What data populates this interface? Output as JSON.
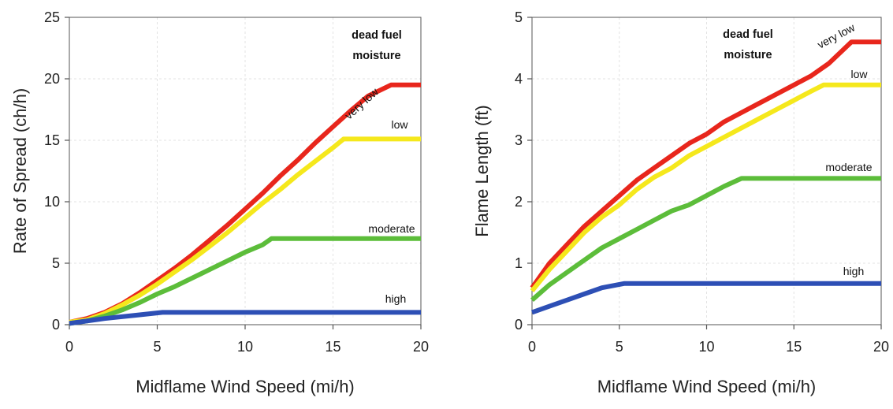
{
  "chart_data": [
    {
      "type": "line",
      "xlabel": "Midflame Wind Speed (mi/h)",
      "ylabel": "Rate of Spread (ch/h)",
      "xlim": [
        0,
        20
      ],
      "ylim": [
        0,
        25
      ],
      "xticks": [
        "0",
        "5",
        "10",
        "15",
        "20"
      ],
      "yticks": [
        "0",
        "5",
        "10",
        "15",
        "20",
        "25"
      ],
      "grid": true,
      "legend_title": [
        "dead fuel",
        "moisture"
      ],
      "series": [
        {
          "name": "very low",
          "color": "#e8261c",
          "points": [
            [
              0,
              0.2
            ],
            [
              1,
              0.5
            ],
            [
              2,
              1.0
            ],
            [
              3,
              1.7
            ],
            [
              4,
              2.6
            ],
            [
              5,
              3.6
            ],
            [
              6,
              4.6
            ],
            [
              7,
              5.7
            ],
            [
              8,
              6.9
            ],
            [
              9,
              8.1
            ],
            [
              10,
              9.4
            ],
            [
              11,
              10.7
            ],
            [
              12,
              12.1
            ],
            [
              13,
              13.4
            ],
            [
              14,
              14.8
            ],
            [
              15,
              16.1
            ],
            [
              16,
              17.4
            ],
            [
              17,
              18.6
            ],
            [
              18.3,
              19.5
            ],
            [
              20,
              19.5
            ]
          ]
        },
        {
          "name": "low",
          "color": "#f5e81c",
          "points": [
            [
              0,
              0.2
            ],
            [
              1,
              0.4
            ],
            [
              2,
              0.9
            ],
            [
              3,
              1.6
            ],
            [
              4,
              2.4
            ],
            [
              5,
              3.3
            ],
            [
              6,
              4.3
            ],
            [
              7,
              5.3
            ],
            [
              8,
              6.4
            ],
            [
              9,
              7.5
            ],
            [
              10,
              8.7
            ],
            [
              11,
              9.9
            ],
            [
              12,
              11.0
            ],
            [
              13,
              12.2
            ],
            [
              14,
              13.3
            ],
            [
              15,
              14.4
            ],
            [
              15.6,
              15.1
            ],
            [
              20,
              15.1
            ]
          ]
        },
        {
          "name": "moderate",
          "color": "#5cbd3a",
          "points": [
            [
              0,
              0.1
            ],
            [
              1,
              0.3
            ],
            [
              2,
              0.7
            ],
            [
              3,
              1.2
            ],
            [
              4,
              1.8
            ],
            [
              5,
              2.5
            ],
            [
              6,
              3.1
            ],
            [
              7,
              3.8
            ],
            [
              8,
              4.5
            ],
            [
              9,
              5.2
            ],
            [
              10,
              5.9
            ],
            [
              11,
              6.5
            ],
            [
              11.5,
              7.0
            ],
            [
              20,
              7.0
            ]
          ]
        },
        {
          "name": "high",
          "color": "#2d4fb5",
          "points": [
            [
              0,
              0.1
            ],
            [
              2,
              0.5
            ],
            [
              4,
              0.8
            ],
            [
              5.3,
              1.0
            ],
            [
              20,
              1.0
            ]
          ]
        }
      ]
    },
    {
      "type": "line",
      "xlabel": "Midflame Wind Speed (mi/h)",
      "ylabel": "Flame Length (ft)",
      "xlim": [
        0,
        20
      ],
      "ylim": [
        0,
        5
      ],
      "xticks": [
        "0",
        "5",
        "10",
        "15",
        "20"
      ],
      "yticks": [
        "0",
        "1",
        "2",
        "3",
        "4",
        "5"
      ],
      "grid": true,
      "legend_title": [
        "dead fuel",
        "moisture"
      ],
      "series": [
        {
          "name": "very low",
          "color": "#e8261c",
          "points": [
            [
              0,
              0.6
            ],
            [
              1,
              1.0
            ],
            [
              2,
              1.3
            ],
            [
              3,
              1.6
            ],
            [
              4,
              1.85
            ],
            [
              5,
              2.1
            ],
            [
              6,
              2.35
            ],
            [
              7,
              2.55
            ],
            [
              8,
              2.75
            ],
            [
              9,
              2.95
            ],
            [
              10,
              3.1
            ],
            [
              11,
              3.3
            ],
            [
              12,
              3.45
            ],
            [
              13,
              3.6
            ],
            [
              14,
              3.75
            ],
            [
              15,
              3.9
            ],
            [
              16,
              4.05
            ],
            [
              17,
              4.25
            ],
            [
              18.3,
              4.6
            ],
            [
              20,
              4.6
            ]
          ]
        },
        {
          "name": "low",
          "color": "#f5e81c",
          "points": [
            [
              0,
              0.55
            ],
            [
              1,
              0.9
            ],
            [
              2,
              1.2
            ],
            [
              3,
              1.5
            ],
            [
              4,
              1.75
            ],
            [
              5,
              1.95
            ],
            [
              6,
              2.2
            ],
            [
              7,
              2.4
            ],
            [
              8,
              2.55
            ],
            [
              9,
              2.75
            ],
            [
              10,
              2.9
            ],
            [
              11,
              3.05
            ],
            [
              12,
              3.2
            ],
            [
              13,
              3.35
            ],
            [
              14,
              3.5
            ],
            [
              15,
              3.65
            ],
            [
              16,
              3.8
            ],
            [
              16.7,
              3.9
            ],
            [
              20,
              3.9
            ]
          ]
        },
        {
          "name": "moderate",
          "color": "#5cbd3a",
          "points": [
            [
              0,
              0.4
            ],
            [
              1,
              0.65
            ],
            [
              2,
              0.85
            ],
            [
              3,
              1.05
            ],
            [
              4,
              1.25
            ],
            [
              5,
              1.4
            ],
            [
              6,
              1.55
            ],
            [
              7,
              1.7
            ],
            [
              8,
              1.85
            ],
            [
              9,
              1.95
            ],
            [
              10,
              2.1
            ],
            [
              11,
              2.25
            ],
            [
              12,
              2.38
            ],
            [
              20,
              2.38
            ]
          ]
        },
        {
          "name": "high",
          "color": "#2d4fb5",
          "points": [
            [
              0,
              0.2
            ],
            [
              1,
              0.3
            ],
            [
              2,
              0.4
            ],
            [
              3,
              0.5
            ],
            [
              4,
              0.6
            ],
            [
              5.3,
              0.67
            ],
            [
              20,
              0.67
            ]
          ]
        }
      ]
    }
  ]
}
